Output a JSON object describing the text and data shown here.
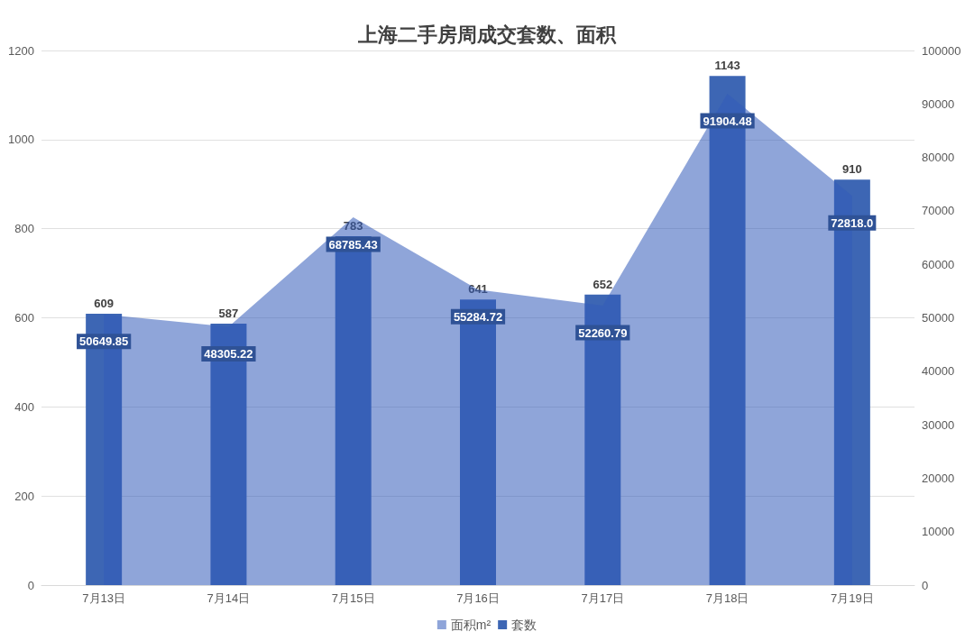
{
  "chart_data": {
    "type": "bar",
    "title": "上海二手房周成交套数、面积",
    "categories": [
      "7月13日",
      "7月14日",
      "7月15日",
      "7月16日",
      "7月17日",
      "7月18日",
      "7月19日"
    ],
    "series": [
      {
        "name": "面积m²",
        "type": "area",
        "axis": "y2",
        "color": "#8fa5d9",
        "values": [
          50649.85,
          48305.22,
          68785.43,
          55284.72,
          52260.79,
          91904.48,
          72818.0
        ],
        "value_labels": [
          "50649.85",
          "48305.22",
          "68785.43",
          "55284.72",
          "52260.79",
          "91904.48",
          "72818.0"
        ]
      },
      {
        "name": "套数",
        "type": "bar",
        "color": "#3d66b4",
        "values": [
          609,
          587,
          783,
          641,
          652,
          1143,
          910
        ],
        "data_labels": true
      }
    ],
    "ylim": [
      0,
      1200
    ],
    "yticks": [
      0,
      200,
      400,
      600,
      800,
      1000,
      1200
    ],
    "y2lim": [
      0,
      100000
    ],
    "y2ticks": [
      0,
      10000,
      20000,
      30000,
      40000,
      50000,
      60000,
      70000,
      80000,
      90000,
      100000
    ],
    "grid": "y",
    "legend": "bottom"
  }
}
